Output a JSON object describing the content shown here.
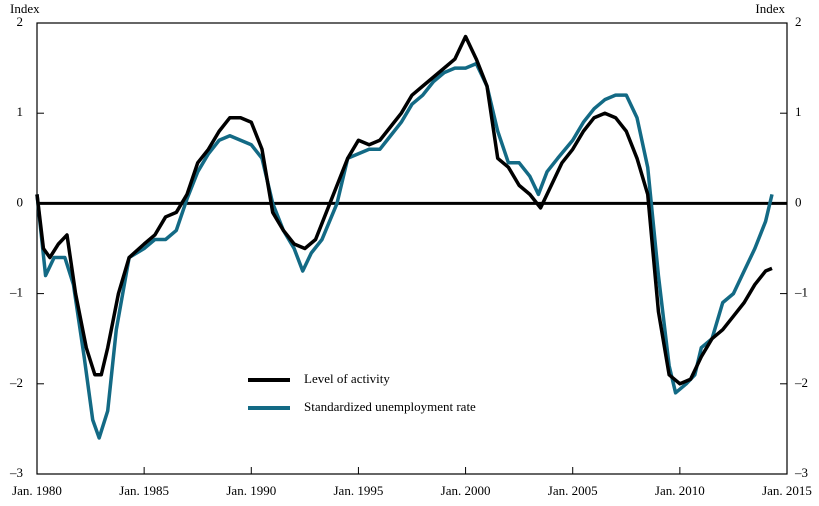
{
  "chart_data": {
    "type": "line",
    "y_label": "Index",
    "y2_label": "Index",
    "xlim": [
      1980,
      2015
    ],
    "xticks": [
      {
        "value": 1980,
        "label": "Jan. 1980"
      },
      {
        "value": 1985,
        "label": "Jan. 1985"
      },
      {
        "value": 1990,
        "label": "Jan. 1990"
      },
      {
        "value": 1995,
        "label": "Jan. 1995"
      },
      {
        "value": 2000,
        "label": "Jan. 2000"
      },
      {
        "value": 2005,
        "label": "Jan. 2005"
      },
      {
        "value": 2010,
        "label": "Jan. 2010"
      },
      {
        "value": 2015,
        "label": "Jan. 2015"
      }
    ],
    "ylim": [
      -3,
      2
    ],
    "yticks": [
      {
        "value": -3,
        "label": "–3"
      },
      {
        "value": -2,
        "label": "–2"
      },
      {
        "value": -1,
        "label": "–1"
      },
      0,
      1,
      2
    ],
    "y2lim": [
      -3,
      2
    ],
    "y2ticks": [
      {
        "value": -3,
        "label": "–3"
      },
      {
        "value": -2,
        "label": "–2"
      },
      {
        "value": -1,
        "label": "–1"
      },
      0,
      1,
      2
    ],
    "series": [
      {
        "name": "Level of activity",
        "color": "#000000",
        "x": [
          1980.0,
          1980.3,
          1980.6,
          1981.0,
          1981.4,
          1981.8,
          1982.3,
          1982.7,
          1983.0,
          1983.3,
          1983.8,
          1984.3,
          1985.0,
          1985.5,
          1986.0,
          1986.5,
          1987.0,
          1987.5,
          1988.0,
          1988.5,
          1989.0,
          1989.5,
          1990.0,
          1990.5,
          1991.0,
          1991.5,
          1992.0,
          1992.5,
          1993.0,
          1993.5,
          1994.0,
          1994.5,
          1995.0,
          1995.5,
          1996.0,
          1996.5,
          1997.0,
          1997.5,
          1998.0,
          1998.5,
          1999.0,
          1999.5,
          2000.0,
          2000.5,
          2001.0,
          2001.5,
          2002.0,
          2002.5,
          2003.0,
          2003.5,
          2004.0,
          2004.5,
          2005.0,
          2005.5,
          2006.0,
          2006.5,
          2007.0,
          2007.5,
          2008.0,
          2008.5,
          2009.0,
          2009.5,
          2010.0,
          2010.5,
          2011.0,
          2011.5,
          2012.0,
          2012.5,
          2013.0,
          2013.5,
          2014.0,
          2014.3
        ],
        "values": [
          0.1,
          -0.5,
          -0.6,
          -0.45,
          -0.35,
          -1.0,
          -1.6,
          -1.9,
          -1.9,
          -1.6,
          -1.0,
          -0.6,
          -0.45,
          -0.35,
          -0.15,
          -0.1,
          0.1,
          0.45,
          0.6,
          0.8,
          0.95,
          0.95,
          0.9,
          0.6,
          -0.1,
          -0.3,
          -0.45,
          -0.5,
          -0.4,
          -0.1,
          0.2,
          0.5,
          0.7,
          0.65,
          0.7,
          0.85,
          1.0,
          1.2,
          1.3,
          1.4,
          1.5,
          1.6,
          1.85,
          1.6,
          1.3,
          0.5,
          0.4,
          0.2,
          0.1,
          -0.05,
          0.2,
          0.45,
          0.6,
          0.8,
          0.95,
          1.0,
          0.95,
          0.8,
          0.5,
          0.1,
          -1.2,
          -1.9,
          -2.0,
          -1.95,
          -1.7,
          -1.5,
          -1.4,
          -1.25,
          -1.1,
          -0.9,
          -0.75,
          -0.72
        ]
      },
      {
        "name": "Standardized unemployment rate",
        "color": "#136a85",
        "x": [
          1980.0,
          1980.4,
          1980.8,
          1981.3,
          1981.7,
          1982.2,
          1982.6,
          1982.9,
          1983.3,
          1983.7,
          1984.3,
          1985.0,
          1985.5,
          1986.0,
          1986.5,
          1987.0,
          1987.5,
          1988.0,
          1988.5,
          1989.0,
          1989.5,
          1990.0,
          1990.5,
          1991.0,
          1991.5,
          1992.0,
          1992.4,
          1992.8,
          1993.3,
          1994.0,
          1994.5,
          1995.0,
          1995.5,
          1996.0,
          1996.5,
          1997.0,
          1997.5,
          1998.0,
          1998.5,
          1999.0,
          1999.5,
          2000.0,
          2000.5,
          2001.0,
          2001.5,
          2002.0,
          2002.5,
          2003.0,
          2003.4,
          2003.8,
          2004.3,
          2005.0,
          2005.5,
          2006.0,
          2006.5,
          2007.0,
          2007.5,
          2008.0,
          2008.5,
          2009.0,
          2009.5,
          2009.8,
          2010.3,
          2010.7,
          2011.0,
          2011.5,
          2012.0,
          2012.5,
          2013.0,
          2013.5,
          2014.0,
          2014.3
        ],
        "values": [
          0.1,
          -0.8,
          -0.6,
          -0.6,
          -0.9,
          -1.7,
          -2.4,
          -2.6,
          -2.3,
          -1.4,
          -0.6,
          -0.5,
          -0.4,
          -0.4,
          -0.3,
          0.05,
          0.35,
          0.55,
          0.7,
          0.75,
          0.7,
          0.65,
          0.5,
          0.0,
          -0.3,
          -0.5,
          -0.75,
          -0.55,
          -0.4,
          0.0,
          0.5,
          0.55,
          0.6,
          0.6,
          0.75,
          0.9,
          1.1,
          1.2,
          1.35,
          1.45,
          1.5,
          1.5,
          1.55,
          1.3,
          0.8,
          0.45,
          0.45,
          0.3,
          0.1,
          0.35,
          0.5,
          0.7,
          0.9,
          1.05,
          1.15,
          1.2,
          1.2,
          0.95,
          0.4,
          -0.8,
          -1.8,
          -2.1,
          -2.0,
          -1.9,
          -1.6,
          -1.5,
          -1.1,
          -1.0,
          -0.75,
          -0.5,
          -0.2,
          0.1
        ]
      }
    ]
  }
}
